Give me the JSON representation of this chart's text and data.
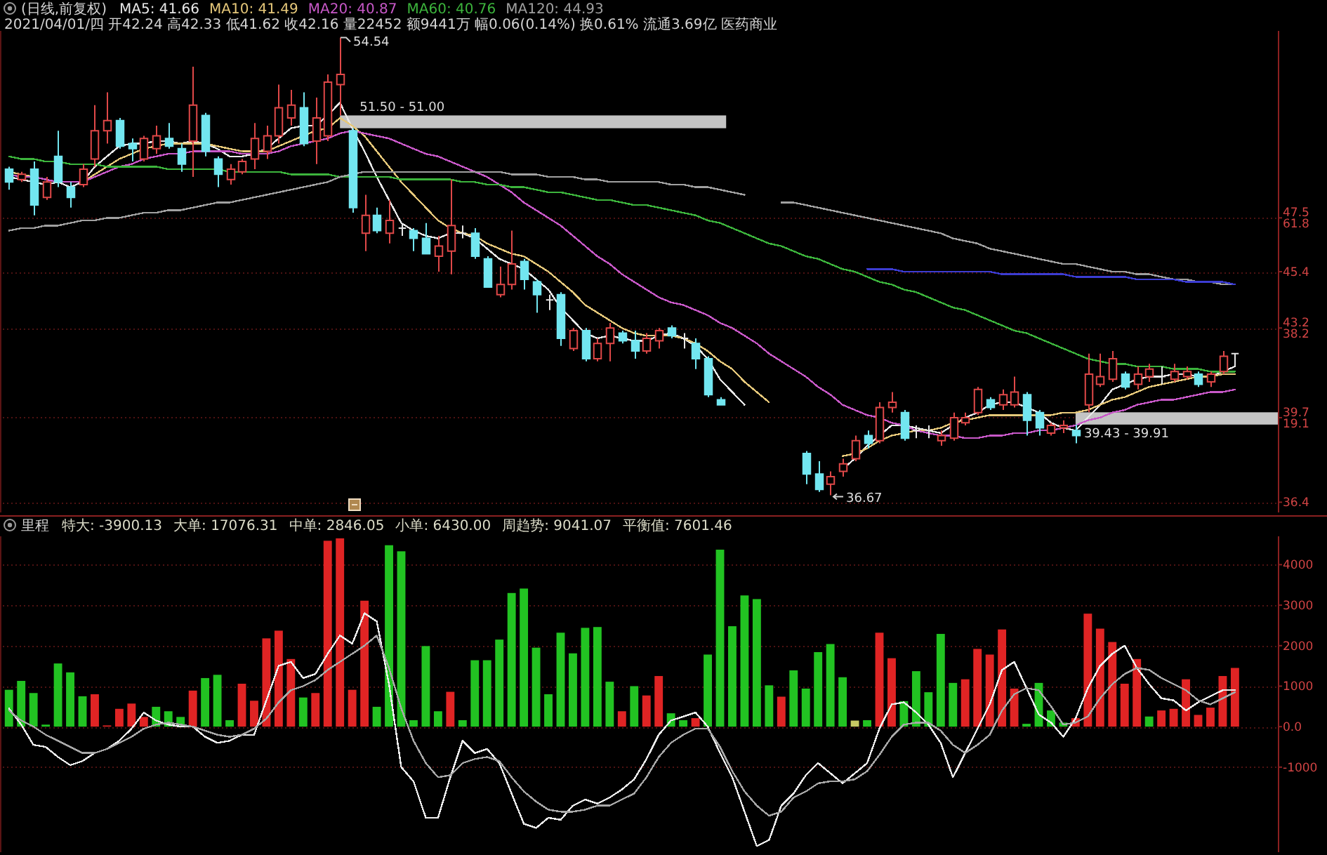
{
  "chart_data": [
    {
      "type": "candlestick",
      "title": "(日线,前复权)",
      "subtitle": "2021/04/01/四 开42.24 高42.33 低41.62 收42.16 量22452 额9441万 幅0.06(0.14%) 换0.61% 流通3.69亿 医药商业",
      "legend": "top left",
      "tick_labels": "y",
      "grid": "y",
      "categories": [
        null,
        null,
        null,
        null,
        null,
        null,
        null,
        null,
        null,
        null,
        null,
        null,
        null,
        null,
        null,
        null,
        null,
        null,
        null,
        null,
        null,
        null,
        null,
        null,
        null,
        null,
        null,
        null,
        null,
        null,
        null,
        null,
        null,
        null,
        null,
        null,
        null,
        null,
        null,
        null,
        null,
        null,
        null,
        null,
        null,
        null,
        null,
        null,
        null,
        null,
        null,
        null,
        null,
        null,
        null,
        null,
        null,
        null,
        null,
        null,
        null,
        null,
        null,
        null,
        null,
        null,
        null,
        null,
        null,
        null,
        null,
        null,
        null,
        null,
        null,
        null,
        null,
        null,
        null,
        null,
        null,
        null,
        null,
        null,
        null,
        null,
        null,
        null,
        null,
        null,
        null,
        null,
        null,
        null,
        null,
        null,
        null,
        null,
        null,
        null,
        null
      ],
      "ohlc": [
        [
          49.4,
          49.5,
          48.6,
          48.9
        ],
        [
          49.0,
          49.3,
          48.9,
          49.2
        ],
        [
          49.4,
          49.7,
          47.6,
          48.0
        ],
        [
          48.3,
          49.1,
          48.2,
          48.9
        ],
        [
          49.9,
          50.9,
          48.7,
          48.9
        ],
        [
          48.7,
          48.9,
          47.9,
          48.3
        ],
        [
          48.8,
          49.6,
          48.7,
          49.4
        ],
        [
          49.8,
          51.9,
          49.5,
          50.9
        ],
        [
          50.9,
          52.4,
          50.4,
          51.3
        ],
        [
          51.3,
          51.4,
          50.2,
          50.3
        ],
        [
          50.4,
          50.6,
          49.7,
          50.2
        ],
        [
          49.8,
          50.7,
          49.7,
          50.6
        ],
        [
          50.2,
          51.1,
          50.0,
          50.7
        ],
        [
          50.6,
          51.2,
          50.2,
          50.3
        ],
        [
          50.2,
          50.4,
          49.3,
          49.6
        ],
        [
          50.5,
          53.4,
          49.1,
          51.9
        ],
        [
          51.5,
          51.6,
          49.9,
          50.1
        ],
        [
          49.8,
          49.9,
          48.7,
          49.2
        ],
        [
          49.0,
          49.6,
          48.8,
          49.4
        ],
        [
          49.3,
          49.8,
          49.2,
          49.7
        ],
        [
          49.8,
          51.2,
          49.4,
          50.6
        ],
        [
          50.1,
          51.1,
          49.8,
          50.7
        ],
        [
          50.7,
          52.7,
          50.4,
          51.8
        ],
        [
          51.4,
          52.5,
          51.1,
          51.9
        ],
        [
          51.8,
          52.4,
          50.3,
          50.4
        ],
        [
          50.5,
          52.2,
          49.6,
          51.4
        ],
        [
          50.7,
          53.1,
          50.5,
          52.8
        ],
        [
          52.7,
          54.54,
          51.5,
          53.1
        ],
        [
          50.9,
          51.0,
          47.7,
          47.9
        ],
        [
          46.9,
          48.4,
          46.2,
          47.6
        ],
        [
          47.6,
          47.9,
          46.9,
          47.0
        ],
        [
          46.9,
          48.2,
          46.5,
          47.4
        ],
        [
          47.1,
          47.3,
          46.8,
          47.1
        ],
        [
          47.0,
          47.1,
          46.2,
          46.7
        ],
        [
          46.7,
          47.3,
          46.1,
          46.1
        ],
        [
          46.0,
          46.8,
          45.4,
          46.4
        ],
        [
          46.2,
          49.0,
          45.3,
          47.2
        ],
        [
          46.9,
          47.2,
          46.7,
          46.9
        ],
        [
          46.9,
          47.1,
          45.9,
          46.0
        ],
        [
          45.9,
          46.0,
          44.8,
          44.8
        ],
        [
          44.5,
          45.6,
          44.4,
          44.9
        ],
        [
          44.9,
          47.0,
          44.7,
          45.7
        ],
        [
          45.8,
          45.9,
          44.7,
          45.1
        ],
        [
          45.0,
          45.1,
          43.8,
          44.5
        ],
        [
          44.3,
          44.5,
          43.9,
          44.3
        ],
        [
          44.5,
          44.6,
          42.5,
          42.8
        ],
        [
          42.4,
          43.2,
          42.3,
          43.1
        ],
        [
          43.1,
          43.2,
          41.9,
          42.0
        ],
        [
          42.0,
          42.8,
          41.9,
          42.6
        ],
        [
          42.6,
          43.4,
          41.9,
          43.2
        ],
        [
          43.0,
          43.1,
          42.6,
          42.7
        ],
        [
          42.7,
          43.1,
          42.0,
          42.3
        ],
        [
          42.3,
          43.0,
          42.2,
          42.8
        ],
        [
          42.7,
          43.2,
          42.4,
          43.1
        ],
        [
          43.2,
          43.3,
          42.8,
          42.9
        ],
        [
          42.8,
          43.0,
          42.4,
          42.8
        ],
        [
          42.6,
          42.8,
          41.6,
          42.0
        ],
        [
          42.0,
          42.1,
          40.5,
          40.6
        ],
        [
          40.4,
          40.5,
          40.2,
          40.2
        ],
        null,
        null,
        null,
        null,
        null,
        null,
        [
          38.3,
          38.4,
          37.1,
          37.5
        ],
        [
          37.5,
          38.0,
          36.8,
          36.9
        ],
        [
          37.1,
          37.6,
          36.67,
          37.4
        ],
        [
          37.6,
          38.1,
          37.4,
          37.9
        ],
        [
          38.1,
          39.0,
          38.0,
          38.8
        ],
        [
          39.0,
          39.2,
          38.5,
          38.7
        ],
        [
          38.8,
          40.3,
          38.7,
          40.1
        ],
        [
          40.1,
          40.7,
          39.9,
          40.3
        ],
        [
          39.9,
          40.0,
          38.8,
          38.9
        ],
        [
          39.2,
          39.4,
          38.9,
          39.2
        ],
        [
          39.2,
          39.4,
          38.9,
          39.2
        ],
        [
          38.8,
          39.2,
          38.6,
          39.0
        ],
        [
          38.9,
          39.9,
          38.8,
          39.7
        ],
        [
          39.5,
          39.9,
          39.4,
          39.7
        ],
        [
          39.9,
          40.9,
          39.8,
          40.8
        ],
        [
          40.4,
          40.5,
          40.0,
          40.1
        ],
        [
          40.2,
          40.8,
          40.0,
          40.6
        ],
        [
          40.2,
          41.3,
          40.1,
          40.7
        ],
        [
          40.6,
          40.7,
          39.0,
          39.6
        ],
        [
          39.9,
          40.0,
          39.0,
          39.3
        ],
        [
          39.1,
          39.5,
          39.0,
          39.4
        ],
        [
          39.3,
          39.6,
          39.1,
          39.4
        ],
        [
          39.2,
          39.43,
          38.7,
          39.0
        ],
        [
          40.2,
          42.2,
          39.91,
          41.4
        ],
        [
          41.0,
          42.2,
          40.9,
          41.3
        ],
        [
          41.2,
          42.3,
          41.1,
          42.0
        ],
        [
          41.4,
          41.5,
          40.8,
          40.9
        ],
        [
          41.0,
          41.7,
          40.8,
          41.4
        ],
        [
          41.3,
          41.8,
          41.1,
          41.6
        ],
        [
          41.3,
          41.7,
          41.0,
          41.3
        ],
        [
          41.2,
          41.8,
          41.1,
          41.5
        ],
        [
          41.3,
          41.7,
          41.2,
          41.5
        ],
        [
          41.4,
          41.5,
          40.9,
          41.0
        ],
        [
          41.1,
          41.5,
          40.9,
          41.4
        ],
        [
          41.5,
          42.3,
          41.4,
          42.1
        ],
        [
          42.2,
          42.2,
          41.7,
          42.2
        ]
      ],
      "colors": [
        "#72e6f0",
        "#e04848",
        "#72e6f0",
        "#e04848",
        "#72e6f0",
        "#72e6f0",
        "#e04848",
        "#e04848",
        "#e04848",
        "#72e6f0",
        "#72e6f0",
        "#e04848",
        "#e04848",
        "#72e6f0",
        "#72e6f0",
        "#e04848",
        "#72e6f0",
        "#72e6f0",
        "#e04848",
        "#e04848",
        "#e04848",
        "#e04848",
        "#e04848",
        "#e04848",
        "#72e6f0",
        "#e04848",
        "#e04848",
        "#e04848",
        "#72e6f0",
        "#e04848",
        "#72e6f0",
        "#e04848",
        "#e6e6e6",
        "#72e6f0",
        "#72e6f0",
        "#e04848",
        "#e04848",
        "#e6e6e6",
        "#72e6f0",
        "#72e6f0",
        "#e04848",
        "#e04848",
        "#72e6f0",
        "#72e6f0",
        "#e6e6e6",
        "#72e6f0",
        "#e04848",
        "#72e6f0",
        "#e04848",
        "#e04848",
        "#72e6f0",
        "#72e6f0",
        "#e04848",
        "#e04848",
        "#72e6f0",
        "#e6e6e6",
        "#72e6f0",
        "#72e6f0",
        "#72e6f0",
        null,
        null,
        null,
        null,
        null,
        null,
        "#72e6f0",
        "#72e6f0",
        "#e04848",
        "#e04848",
        "#e04848",
        "#72e6f0",
        "#e04848",
        "#e04848",
        "#72e6f0",
        "#e6e6e6",
        "#e6e6e6",
        "#e04848",
        "#e04848",
        "#e04848",
        "#e04848",
        "#72e6f0",
        "#e04848",
        "#e04848",
        "#72e6f0",
        "#72e6f0",
        "#e04848",
        "#e04848",
        "#72e6f0",
        "#e04848",
        "#e04848",
        "#e04848",
        "#72e6f0",
        "#e04848",
        "#e04848",
        "#e6e6e6",
        "#e04848",
        "#e04848",
        "#72e6f0",
        "#e04848",
        "#e04848",
        "#e6e6e6"
      ],
      "series": [
        {
          "name": "MA5: 41.66",
          "type": "line",
          "color": "#e8e8e8",
          "values": [
            49.1,
            49.0,
            48.9,
            48.8,
            48.9,
            48.7,
            48.9,
            49.5,
            49.9,
            50.3,
            50.4,
            50.4,
            50.5,
            50.5,
            50.4,
            50.5,
            50.4,
            50.2,
            49.9,
            49.9,
            50.0,
            50.2,
            50.6,
            51.0,
            51.1,
            51.1,
            51.5,
            52.0,
            51.0,
            50.1,
            49.1,
            48.2,
            47.3,
            47.0,
            46.8,
            46.7,
            46.9,
            46.9,
            46.7,
            46.3,
            45.9,
            45.7,
            45.5,
            45.1,
            44.7,
            44.0,
            43.5,
            43.0,
            42.8,
            42.9,
            42.8,
            42.7,
            42.7,
            42.9,
            43.0,
            42.8,
            42.5,
            42.0,
            41.2,
            40.7,
            40.2,
            null,
            null,
            null,
            null,
            null,
            null,
            null,
            37.7,
            38.1,
            38.6,
            39.0,
            39.4,
            39.4,
            39.3,
            39.2,
            39.1,
            39.4,
            39.7,
            39.9,
            40.2,
            40.3,
            40.3,
            40.1,
            39.9,
            39.5,
            39.3,
            39.2,
            39.7,
            40.2,
            40.8,
            41.0,
            41.2,
            41.3,
            41.3,
            41.4,
            41.4,
            41.3,
            41.3,
            41.5,
            41.7
          ]
        },
        {
          "name": "MA10: 41.49",
          "type": "line",
          "color": "#e6c87a",
          "values": [
            49.3,
            49.2,
            49.1,
            49.0,
            48.9,
            48.9,
            48.9,
            49.2,
            49.5,
            49.8,
            50.0,
            50.2,
            50.3,
            50.4,
            50.4,
            50.4,
            50.4,
            50.3,
            50.2,
            50.1,
            50.1,
            50.1,
            50.3,
            50.5,
            50.7,
            50.9,
            51.0,
            51.4,
            51.1,
            50.7,
            50.1,
            49.5,
            48.9,
            48.4,
            47.9,
            47.4,
            47.1,
            46.9,
            46.8,
            46.5,
            46.3,
            46.1,
            46.0,
            45.7,
            45.4,
            45.0,
            44.6,
            44.1,
            43.8,
            43.5,
            43.2,
            43.0,
            42.9,
            42.9,
            42.9,
            42.8,
            42.6,
            42.3,
            41.9,
            41.6,
            41.1,
            40.7,
            40.3,
            null,
            null,
            null,
            null,
            null,
            38.2,
            38.3,
            38.5,
            38.8,
            39.0,
            39.1,
            39.2,
            39.2,
            39.3,
            39.5,
            39.6,
            39.7,
            39.8,
            39.8,
            39.8,
            39.8,
            39.8,
            39.8,
            39.9,
            39.9,
            40.0,
            40.2,
            40.4,
            40.5,
            40.7,
            40.9,
            41.0,
            41.1,
            41.2,
            41.3,
            41.3,
            41.4,
            41.4
          ]
        },
        {
          "name": "MA20: 40.87",
          "type": "line",
          "color": "#c858c8",
          "values": [
            49.2,
            49.1,
            49.1,
            49.0,
            48.9,
            48.9,
            48.9,
            49.1,
            49.3,
            49.5,
            49.6,
            49.8,
            49.9,
            50.0,
            50.0,
            50.1,
            50.1,
            50.1,
            50.1,
            50.0,
            50.0,
            50.0,
            50.1,
            50.3,
            50.4,
            50.5,
            50.6,
            50.8,
            50.9,
            50.8,
            50.7,
            50.6,
            50.4,
            50.2,
            50.0,
            49.9,
            49.7,
            49.5,
            49.3,
            49.1,
            48.8,
            48.5,
            48.1,
            47.8,
            47.5,
            47.2,
            46.8,
            46.4,
            46.0,
            45.7,
            45.3,
            45.0,
            44.7,
            44.4,
            44.2,
            44.1,
            43.9,
            43.7,
            43.4,
            43.2,
            42.9,
            42.6,
            42.2,
            41.9,
            41.6,
            41.3,
            40.9,
            40.6,
            40.2,
            40.0,
            39.8,
            39.7,
            39.5,
            39.4,
            39.2,
            39.1,
            39.0,
            39.0,
            38.9,
            38.9,
            39.0,
            39.0,
            39.1,
            39.1,
            39.2,
            39.2,
            39.3,
            39.4,
            39.6,
            39.7,
            39.9,
            40.0,
            40.2,
            40.3,
            40.4,
            40.4,
            40.5,
            40.6,
            40.7,
            40.7,
            40.8
          ]
        },
        {
          "name": "MA60: 40.76",
          "type": "line",
          "color": "#3cb43c",
          "values": [
            49.9,
            49.8,
            49.8,
            49.7,
            49.7,
            49.6,
            49.6,
            49.6,
            49.5,
            49.5,
            49.5,
            49.5,
            49.5,
            49.4,
            49.4,
            49.4,
            49.4,
            49.4,
            49.3,
            49.3,
            49.3,
            49.3,
            49.3,
            49.2,
            49.2,
            49.2,
            49.2,
            49.1,
            49.1,
            49.1,
            49.1,
            49.1,
            49.0,
            49.0,
            49.0,
            49.0,
            49.0,
            48.9,
            48.9,
            48.8,
            48.8,
            48.7,
            48.7,
            48.6,
            48.5,
            48.5,
            48.4,
            48.3,
            48.2,
            48.2,
            48.1,
            48.0,
            48.0,
            47.9,
            47.8,
            47.7,
            47.6,
            47.4,
            47.3,
            47.1,
            46.9,
            46.7,
            46.5,
            46.4,
            46.2,
            46.0,
            45.9,
            45.7,
            45.5,
            45.4,
            45.2,
            45.0,
            44.9,
            44.7,
            44.6,
            44.4,
            44.2,
            44.0,
            43.9,
            43.7,
            43.5,
            43.3,
            43.1,
            43.0,
            42.8,
            42.6,
            42.4,
            42.2,
            42.0,
            41.9,
            41.8,
            41.8,
            41.7,
            41.7,
            41.7,
            41.6,
            41.6,
            41.6,
            41.5,
            41.5,
            41.5
          ]
        },
        {
          "name": "MA120: 44.93",
          "type": "line",
          "color": "#a0a0a0",
          "values": [
            47.0,
            47.1,
            47.1,
            47.2,
            47.2,
            47.3,
            47.4,
            47.4,
            47.5,
            47.5,
            47.6,
            47.7,
            47.7,
            47.8,
            47.8,
            47.9,
            48.0,
            48.1,
            48.1,
            48.2,
            48.3,
            48.4,
            48.5,
            48.6,
            48.7,
            48.8,
            48.9,
            49.1,
            49.2,
            49.3,
            49.3,
            49.3,
            49.3,
            49.3,
            49.3,
            49.3,
            49.3,
            49.3,
            49.3,
            49.3,
            49.3,
            49.2,
            49.2,
            49.2,
            49.1,
            49.1,
            49.1,
            49.0,
            49.0,
            48.9,
            48.9,
            48.9,
            48.9,
            48.9,
            48.8,
            48.8,
            48.7,
            48.7,
            48.6,
            48.5,
            48.4,
            null,
            null,
            48.1,
            48.1,
            48.0,
            47.9,
            47.8,
            47.7,
            47.6,
            47.5,
            47.4,
            47.3,
            47.2,
            47.1,
            47.0,
            46.9,
            46.7,
            46.6,
            46.5,
            46.3,
            46.2,
            46.1,
            46.0,
            45.9,
            45.8,
            45.7,
            45.7,
            45.6,
            45.5,
            45.4,
            45.4,
            45.3,
            45.3,
            45.2,
            45.1,
            45.1,
            45.0,
            45.0,
            44.9,
            44.9
          ]
        },
        {
          "type": "line",
          "color": "#3c3cd2",
          "values": [
            null,
            null,
            null,
            null,
            null,
            null,
            null,
            null,
            null,
            null,
            null,
            null,
            null,
            null,
            null,
            null,
            null,
            null,
            null,
            null,
            null,
            null,
            null,
            null,
            null,
            null,
            null,
            null,
            null,
            null,
            null,
            null,
            null,
            null,
            null,
            null,
            null,
            null,
            null,
            null,
            null,
            null,
            null,
            null,
            null,
            null,
            null,
            null,
            null,
            null,
            null,
            null,
            null,
            null,
            null,
            null,
            null,
            null,
            null,
            null,
            null,
            null,
            null,
            null,
            null,
            null,
            null,
            null,
            null,
            null,
            45.5,
            45.5,
            45.5,
            45.4,
            45.4,
            45.4,
            45.4,
            45.4,
            45.4,
            45.4,
            45.4,
            45.3,
            45.3,
            45.3,
            45.3,
            45.3,
            45.3,
            45.2,
            45.2,
            45.2,
            45.2,
            45.2,
            45.1,
            45.1,
            45.1,
            45.1,
            45.0,
            45.0,
            45.0,
            45.0,
            44.9
          ]
        }
      ],
      "ylim": [
        36.0,
        54.8
      ],
      "yticks": [
        {
          "value": 47.5,
          "label": "47.5\n61.8"
        },
        45.4,
        {
          "value": 43.2,
          "label": "43.2\n38.2"
        },
        {
          "value": 39.7,
          "label": "39.7\n19.1"
        },
        36.4
      ],
      "annotations": [
        "54.54",
        "36.67"
      ],
      "bands": [
        {
          "axis": "y",
          "from": 51.0,
          "to": 51.5,
          "label": "51.50 - 51.00",
          "color": "#c4c4c4"
        },
        {
          "axis": "y",
          "from": 39.43,
          "to": 39.91,
          "label": "39.43 - 39.91",
          "color": "#c4c4c4"
        }
      ]
    },
    {
      "type": "bar",
      "title": "里程",
      "tick_labels": "y",
      "grid": "y",
      "annotations": [
        "特大: -3900.13",
        "大单: 17076.31",
        "中单: 2846.05",
        "小单: 6430.00",
        "周趋势: 9041.07",
        "平衡值: 7601.46"
      ],
      "categories": [
        null,
        null,
        null,
        null,
        null,
        null,
        null,
        null,
        null,
        null,
        null,
        null,
        null,
        null,
        null,
        null,
        null,
        null,
        null,
        null,
        null,
        null,
        null,
        null,
        null,
        null,
        null,
        null,
        null,
        null,
        null,
        null,
        null,
        null,
        null,
        null,
        null,
        null,
        null,
        null,
        null,
        null,
        null,
        null,
        null,
        null,
        null,
        null,
        null,
        null,
        null,
        null,
        null,
        null,
        null,
        null,
        null,
        null,
        null,
        null,
        null,
        null,
        null,
        null,
        null,
        null,
        null,
        null,
        null,
        null,
        null,
        null,
        null,
        null,
        null,
        null,
        null,
        null,
        null,
        null,
        null,
        null,
        null,
        null,
        null,
        null,
        null,
        null,
        null,
        null,
        null,
        null,
        null,
        null,
        null,
        null,
        null,
        null,
        null,
        null,
        null
      ],
      "series": [
        {
          "type": "bar",
          "values": [
            910,
            1130,
            830,
            50,
            1560,
            1340,
            750,
            800,
            30,
            440,
            570,
            240,
            490,
            380,
            240,
            890,
            1200,
            1280,
            160,
            1060,
            640,
            2180,
            2370,
            1670,
            720,
            830,
            4590,
            4650,
            910,
            3110,
            490,
            4480,
            4330,
            160,
            1990,
            380,
            860,
            160,
            1640,
            1640,
            2150,
            3300,
            3410,
            1950,
            800,
            2320,
            1810,
            2440,
            2460,
            1110,
            380,
            1000,
            770,
            1250,
            330,
            160,
            210,
            1780,
            4370,
            2480,
            3240,
            3150,
            1020,
            740,
            1390,
            940,
            1840,
            2040,
            1220,
            150,
            160,
            2320,
            1690,
            630,
            1370,
            850,
            2290,
            1080,
            1170,
            1920,
            1780,
            2400,
            940,
            70,
            1080,
            400,
            100,
            210,
            2790,
            2420,
            2090,
            1060,
            1670,
            250,
            400,
            440,
            1170,
            290,
            470,
            1250,
            1450
          ],
          "colors": [
            "#22c322",
            "#22c322",
            "#22c322",
            "#22c322",
            "#22c322",
            "#22c322",
            "#22c322",
            "#e02424",
            "#e02424",
            "#e02424",
            "#e02424",
            "#e02424",
            "#22c322",
            "#22c322",
            "#22c322",
            "#e02424",
            "#22c322",
            "#22c322",
            "#22c322",
            "#e02424",
            "#e02424",
            "#e02424",
            "#e02424",
            "#e02424",
            "#22c322",
            "#e02424",
            "#e02424",
            "#e02424",
            "#e02424",
            "#e02424",
            "#22c322",
            "#22c322",
            "#22c322",
            "#22c322",
            "#22c322",
            "#22c322",
            "#e02424",
            "#22c322",
            "#22c322",
            "#22c322",
            "#22c322",
            "#22c322",
            "#22c322",
            "#22c322",
            "#22c322",
            "#22c322",
            "#22c322",
            "#22c322",
            "#22c322",
            "#22c322",
            "#e02424",
            "#22c322",
            "#e02424",
            "#e02424",
            "#22c322",
            "#22c322",
            "#e02424",
            "#22c322",
            "#22c322",
            "#22c322",
            "#22c322",
            "#22c322",
            "#22c322",
            "#e02424",
            "#22c322",
            "#22c322",
            "#22c322",
            "#22c322",
            "#22c322",
            "#c8c864",
            "#22c322",
            "#e02424",
            "#e02424",
            "#22c322",
            "#22c322",
            "#22c322",
            "#22c322",
            "#22c322",
            "#e02424",
            "#e02424",
            "#e02424",
            "#e02424",
            "#e02424",
            "#22c322",
            "#22c322",
            "#22c322",
            "#22c322",
            "#e02424",
            "#e02424",
            "#e02424",
            "#e02424",
            "#e02424",
            "#e02424",
            "#22c322",
            "#e02424",
            "#e02424",
            "#e02424",
            "#e02424",
            "#e02424",
            "#e02424",
            "#e02424"
          ]
        },
        {
          "type": "line",
          "color": "#ececec",
          "values": [
            450,
            50,
            -450,
            -500,
            -750,
            -950,
            -850,
            -650,
            -550,
            -350,
            -50,
            350,
            150,
            50,
            0,
            0,
            -250,
            -400,
            -350,
            -200,
            -200,
            650,
            1500,
            1600,
            1200,
            1300,
            1800,
            2250,
            2050,
            2800,
            2600,
            1050,
            -1000,
            -1350,
            -2250,
            -2250,
            -1250,
            -350,
            -650,
            -550,
            -900,
            -1650,
            -2400,
            -2500,
            -2250,
            -2300,
            -1950,
            -1800,
            -1900,
            -1750,
            -1550,
            -1300,
            -800,
            -200,
            150,
            250,
            350,
            0,
            -650,
            -1250,
            -2100,
            -2950,
            -2800,
            -1950,
            -1650,
            -1200,
            -900,
            -1150,
            -1400,
            -1150,
            -900,
            -50,
            550,
            600,
            350,
            50,
            -400,
            -1250,
            -650,
            -50,
            550,
            1400,
            1600,
            950,
            300,
            100,
            -250,
            200,
            950,
            1500,
            1800,
            2000,
            1450,
            1050,
            700,
            650,
            400,
            600,
            750,
            900,
            900
          ]
        },
        {
          "type": "line",
          "color": "#a8a8a8",
          "values": [
            400,
            150,
            0,
            -200,
            -350,
            -500,
            -650,
            -650,
            -550,
            -400,
            -250,
            -50,
            50,
            100,
            50,
            0,
            -100,
            -200,
            -250,
            -200,
            -50,
            200,
            600,
            900,
            1000,
            1150,
            1400,
            1600,
            1800,
            2000,
            2250,
            1450,
            450,
            -350,
            -900,
            -1250,
            -1200,
            -900,
            -800,
            -750,
            -850,
            -1250,
            -1600,
            -1850,
            -2050,
            -2100,
            -2100,
            -2050,
            -1950,
            -1950,
            -1800,
            -1650,
            -1250,
            -750,
            -400,
            -200,
            -50,
            -50,
            -500,
            -1100,
            -1600,
            -1950,
            -2200,
            -2100,
            -1750,
            -1600,
            -1400,
            -1350,
            -1350,
            -1300,
            -1100,
            -700,
            -250,
            50,
            100,
            100,
            -100,
            -450,
            -650,
            -450,
            -200,
            400,
            800,
            950,
            900,
            500,
            50,
            100,
            250,
            700,
            1050,
            1300,
            1450,
            1400,
            1200,
            1050,
            900,
            650,
            550,
            700,
            850
          ]
        }
      ],
      "ylim": [
        -3100,
        4700
      ],
      "yticks": [
        4000,
        3000,
        2000,
        1000,
        {
          "value": 0,
          "label": "0.0"
        },
        -1000
      ]
    }
  ]
}
